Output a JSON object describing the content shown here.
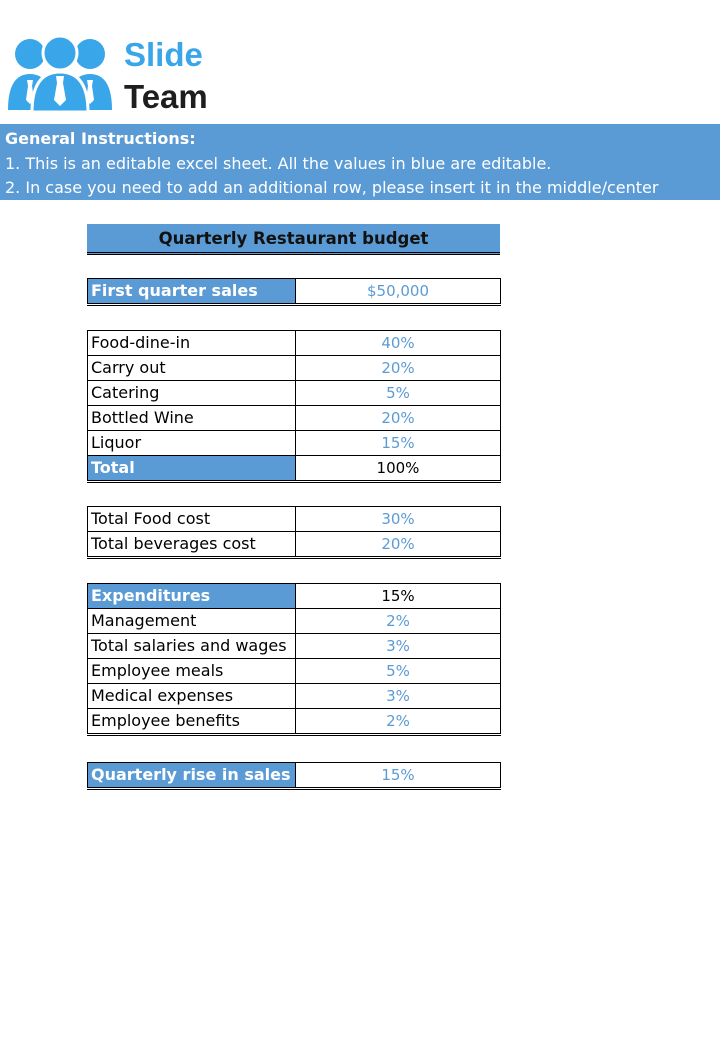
{
  "logo": {
    "line1": "Slide",
    "line2": "Team"
  },
  "instructions": {
    "title": "General Instructions:",
    "line1": "1. This is an editable excel sheet. All the values in blue are editable.",
    "line2": "2. In case you need to add an additional row, please insert it in the middle/center"
  },
  "budget_title": "Quarterly Restaurant budget",
  "first_quarter": {
    "label": "First quarter sales",
    "value": "$50,000"
  },
  "sales_mix": {
    "rows": [
      {
        "label": "Food-dine-in",
        "value": "40%"
      },
      {
        "label": "Carry out",
        "value": "20%"
      },
      {
        "label": "Catering",
        "value": "5%"
      },
      {
        "label": "Bottled Wine",
        "value": "20%"
      },
      {
        "label": "Liquor",
        "value": "15%"
      }
    ],
    "total_label": "Total",
    "total_value": "100%"
  },
  "costs": {
    "rows": [
      {
        "label": "Total Food cost",
        "value": "30%"
      },
      {
        "label": "Total beverages cost",
        "value": "20%"
      }
    ]
  },
  "expenditures": {
    "label": "Expenditures",
    "value": "15%",
    "rows": [
      {
        "label": "Management",
        "value": "2%"
      },
      {
        "label": "Total salaries and wages",
        "value": "3%"
      },
      {
        "label": "Employee meals",
        "value": "5%"
      },
      {
        "label": "Medical expenses",
        "value": "3%"
      },
      {
        "label": "Employee benefits",
        "value": "2%"
      }
    ]
  },
  "rise": {
    "label": "Quarterly rise in sales",
    "value": "15%"
  },
  "colors": {
    "header_blue": "#5b9bd5",
    "logo_blue": "#3aa6ea",
    "editable_text": "#5b9bd5"
  }
}
